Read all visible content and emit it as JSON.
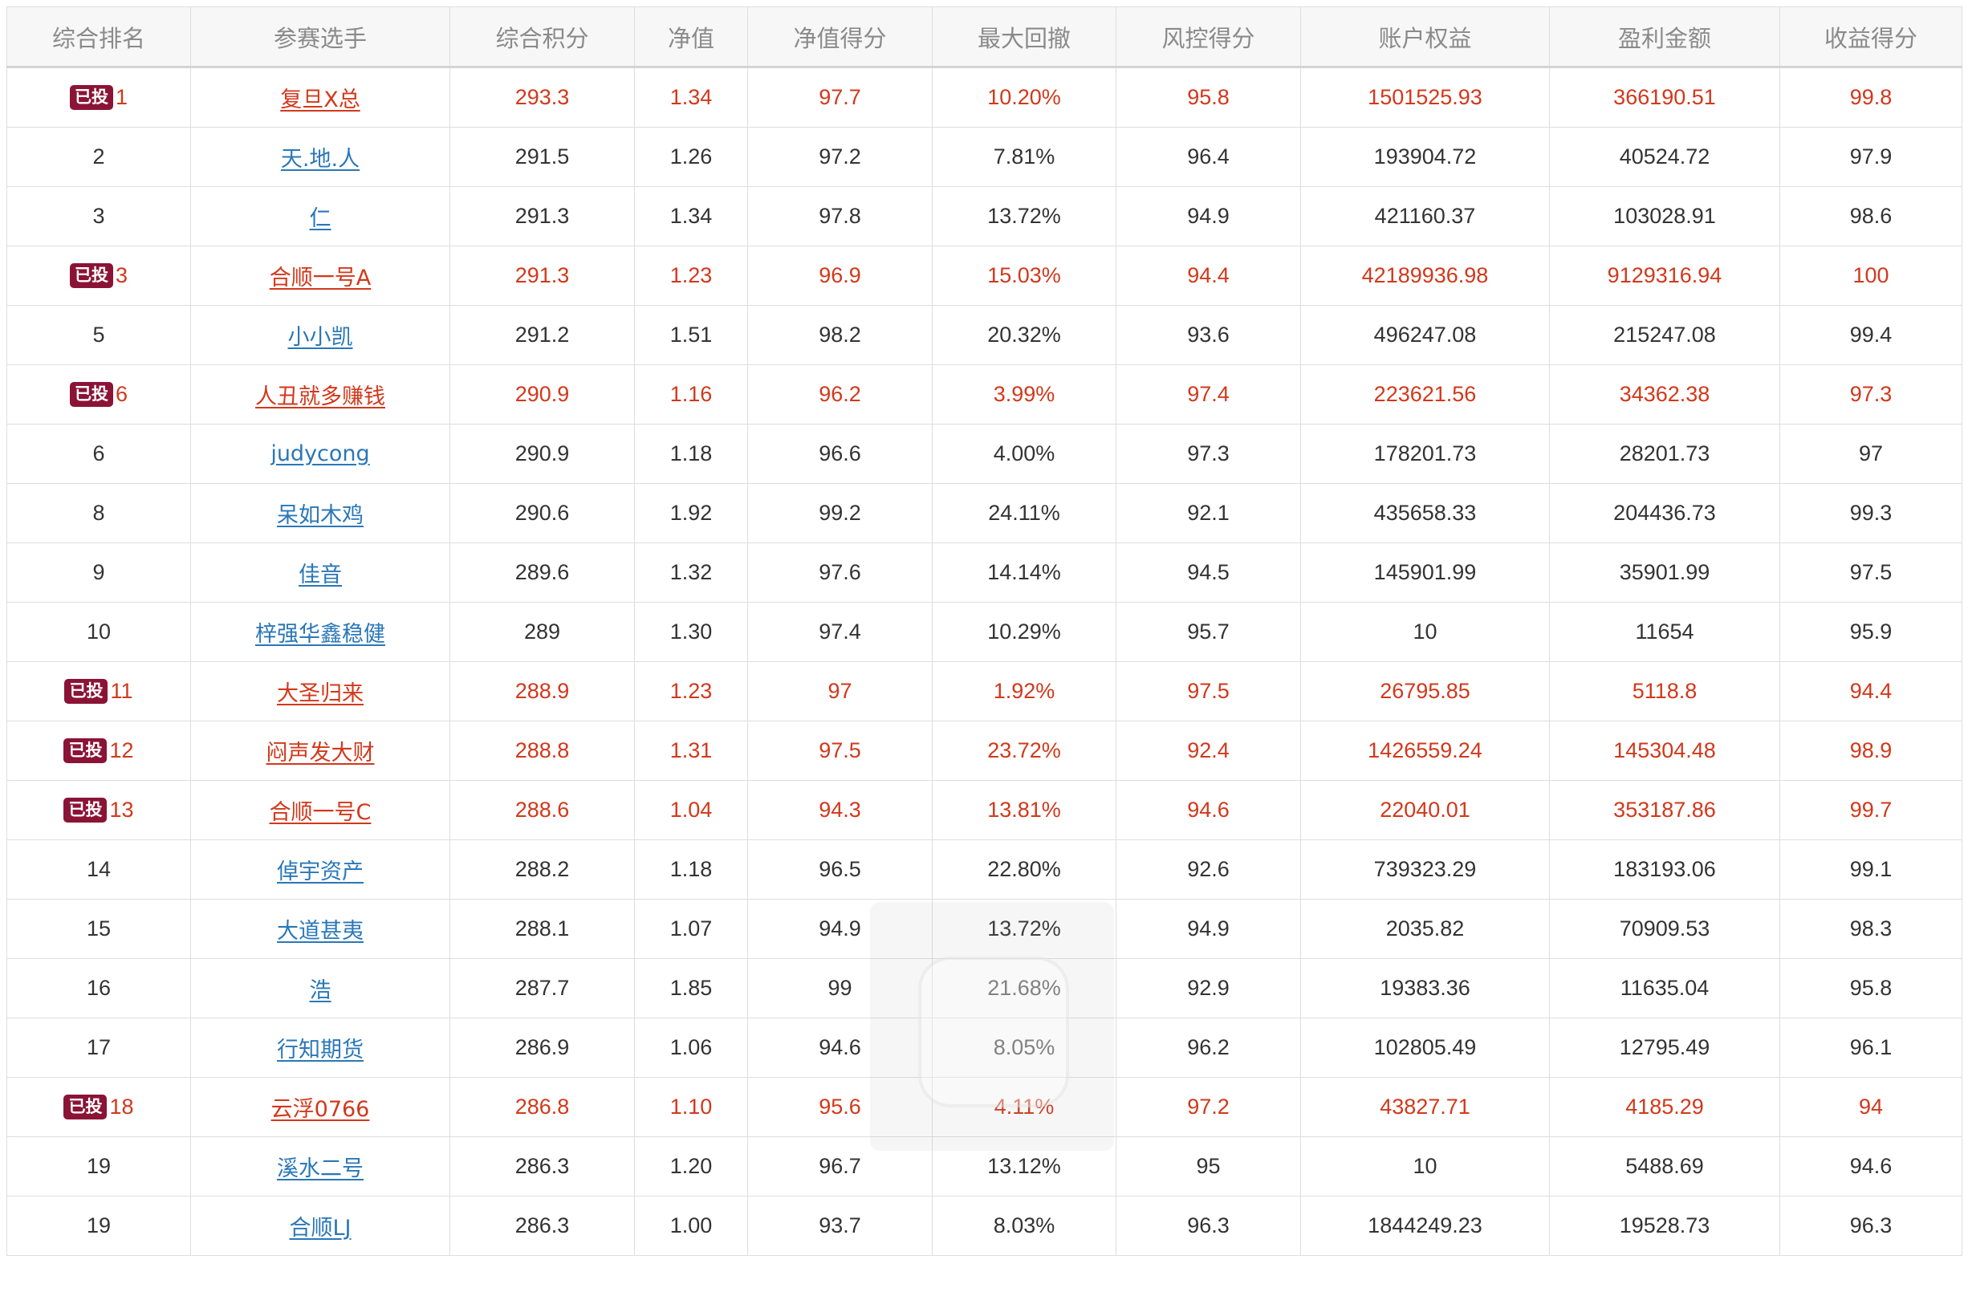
{
  "table": {
    "headers": [
      "综合排名",
      "参赛选手",
      "综合积分",
      "净值",
      "净值得分",
      "最大回撤",
      "风控得分",
      "账户权益",
      "盈利金额",
      "收益得分"
    ],
    "badge_label": "已投",
    "rows": [
      {
        "invested": true,
        "rank": "1",
        "name": "复旦X总",
        "score": "293.3",
        "nav": "1.34",
        "nav_score": "97.7",
        "max_dd": "10.20%",
        "risk_score": "95.8",
        "equity": "1501525.93",
        "profit": "366190.51",
        "return_score": "99.8"
      },
      {
        "invested": false,
        "rank": "2",
        "name": "天.地.人",
        "score": "291.5",
        "nav": "1.26",
        "nav_score": "97.2",
        "max_dd": "7.81%",
        "risk_score": "96.4",
        "equity": "193904.72",
        "profit": "40524.72",
        "return_score": "97.9"
      },
      {
        "invested": false,
        "rank": "3",
        "name": "仁",
        "score": "291.3",
        "nav": "1.34",
        "nav_score": "97.8",
        "max_dd": "13.72%",
        "risk_score": "94.9",
        "equity": "421160.37",
        "profit": "103028.91",
        "return_score": "98.6"
      },
      {
        "invested": true,
        "rank": "3",
        "name": "合顺一号A",
        "score": "291.3",
        "nav": "1.23",
        "nav_score": "96.9",
        "max_dd": "15.03%",
        "risk_score": "94.4",
        "equity": "42189936.98",
        "profit": "9129316.94",
        "return_score": "100"
      },
      {
        "invested": false,
        "rank": "5",
        "name": "小小凯",
        "score": "291.2",
        "nav": "1.51",
        "nav_score": "98.2",
        "max_dd": "20.32%",
        "risk_score": "93.6",
        "equity": "496247.08",
        "profit": "215247.08",
        "return_score": "99.4"
      },
      {
        "invested": true,
        "rank": "6",
        "name": "人丑就多赚钱",
        "score": "290.9",
        "nav": "1.16",
        "nav_score": "96.2",
        "max_dd": "3.99%",
        "risk_score": "97.4",
        "equity": "223621.56",
        "profit": "34362.38",
        "return_score": "97.3"
      },
      {
        "invested": false,
        "rank": "6",
        "name": "judycong",
        "score": "290.9",
        "nav": "1.18",
        "nav_score": "96.6",
        "max_dd": "4.00%",
        "risk_score": "97.3",
        "equity": "178201.73",
        "profit": "28201.73",
        "return_score": "97"
      },
      {
        "invested": false,
        "rank": "8",
        "name": "呆如木鸡",
        "score": "290.6",
        "nav": "1.92",
        "nav_score": "99.2",
        "max_dd": "24.11%",
        "risk_score": "92.1",
        "equity": "435658.33",
        "profit": "204436.73",
        "return_score": "99.3"
      },
      {
        "invested": false,
        "rank": "9",
        "name": "佳音",
        "score": "289.6",
        "nav": "1.32",
        "nav_score": "97.6",
        "max_dd": "14.14%",
        "risk_score": "94.5",
        "equity": "145901.99",
        "profit": "35901.99",
        "return_score": "97.5"
      },
      {
        "invested": false,
        "rank": "10",
        "name": "梓强华鑫稳健",
        "score": "289",
        "nav": "1.30",
        "nav_score": "97.4",
        "max_dd": "10.29%",
        "risk_score": "95.7",
        "equity": "10",
        "profit": "11654",
        "return_score": "95.9"
      },
      {
        "invested": true,
        "rank": "11",
        "name": "大圣归来",
        "score": "288.9",
        "nav": "1.23",
        "nav_score": "97",
        "max_dd": "1.92%",
        "risk_score": "97.5",
        "equity": "26795.85",
        "profit": "5118.8",
        "return_score": "94.4"
      },
      {
        "invested": true,
        "rank": "12",
        "name": "闷声发大财",
        "score": "288.8",
        "nav": "1.31",
        "nav_score": "97.5",
        "max_dd": "23.72%",
        "risk_score": "92.4",
        "equity": "1426559.24",
        "profit": "145304.48",
        "return_score": "98.9"
      },
      {
        "invested": true,
        "rank": "13",
        "name": "合顺一号C",
        "score": "288.6",
        "nav": "1.04",
        "nav_score": "94.3",
        "max_dd": "13.81%",
        "risk_score": "94.6",
        "equity": "22040.01",
        "profit": "353187.86",
        "return_score": "99.7"
      },
      {
        "invested": false,
        "rank": "14",
        "name": "倬宇资产",
        "score": "288.2",
        "nav": "1.18",
        "nav_score": "96.5",
        "max_dd": "22.80%",
        "risk_score": "92.6",
        "equity": "739323.29",
        "profit": "183193.06",
        "return_score": "99.1"
      },
      {
        "invested": false,
        "rank": "15",
        "name": "大道甚夷",
        "score": "288.1",
        "nav": "1.07",
        "nav_score": "94.9",
        "max_dd": "13.72%",
        "risk_score": "94.9",
        "equity": "2035.82",
        "profit": "70909.53",
        "return_score": "98.3"
      },
      {
        "invested": false,
        "rank": "16",
        "name": "浩",
        "score": "287.7",
        "nav": "1.85",
        "nav_score": "99",
        "max_dd": "21.68%",
        "risk_score": "92.9",
        "equity": "19383.36",
        "profit": "11635.04",
        "return_score": "95.8"
      },
      {
        "invested": false,
        "rank": "17",
        "name": "行知期货",
        "score": "286.9",
        "nav": "1.06",
        "nav_score": "94.6",
        "max_dd": "8.05%",
        "risk_score": "96.2",
        "equity": "102805.49",
        "profit": "12795.49",
        "return_score": "96.1"
      },
      {
        "invested": true,
        "rank": "18",
        "name": "云浮0766",
        "score": "286.8",
        "nav": "1.10",
        "nav_score": "95.6",
        "max_dd": "4.11%",
        "risk_score": "97.2",
        "equity": "43827.71",
        "profit": "4185.29",
        "return_score": "94"
      },
      {
        "invested": false,
        "rank": "19",
        "name": "溪水二号",
        "score": "286.3",
        "nav": "1.20",
        "nav_score": "96.7",
        "max_dd": "13.12%",
        "risk_score": "95",
        "equity": "10",
        "profit": "5488.69",
        "return_score": "94.6"
      },
      {
        "invested": false,
        "rank": "19",
        "name": "合顺LJ",
        "score": "286.3",
        "nav": "1.00",
        "nav_score": "93.7",
        "max_dd": "8.03%",
        "risk_score": "96.3",
        "equity": "1844249.23",
        "profit": "19528.73",
        "return_score": "96.3"
      }
    ]
  },
  "colors": {
    "invested_text": "#d2381b",
    "link": "#2a77b8",
    "badge_bg": "#8b1436",
    "header_bg": "#f7f7f7"
  }
}
